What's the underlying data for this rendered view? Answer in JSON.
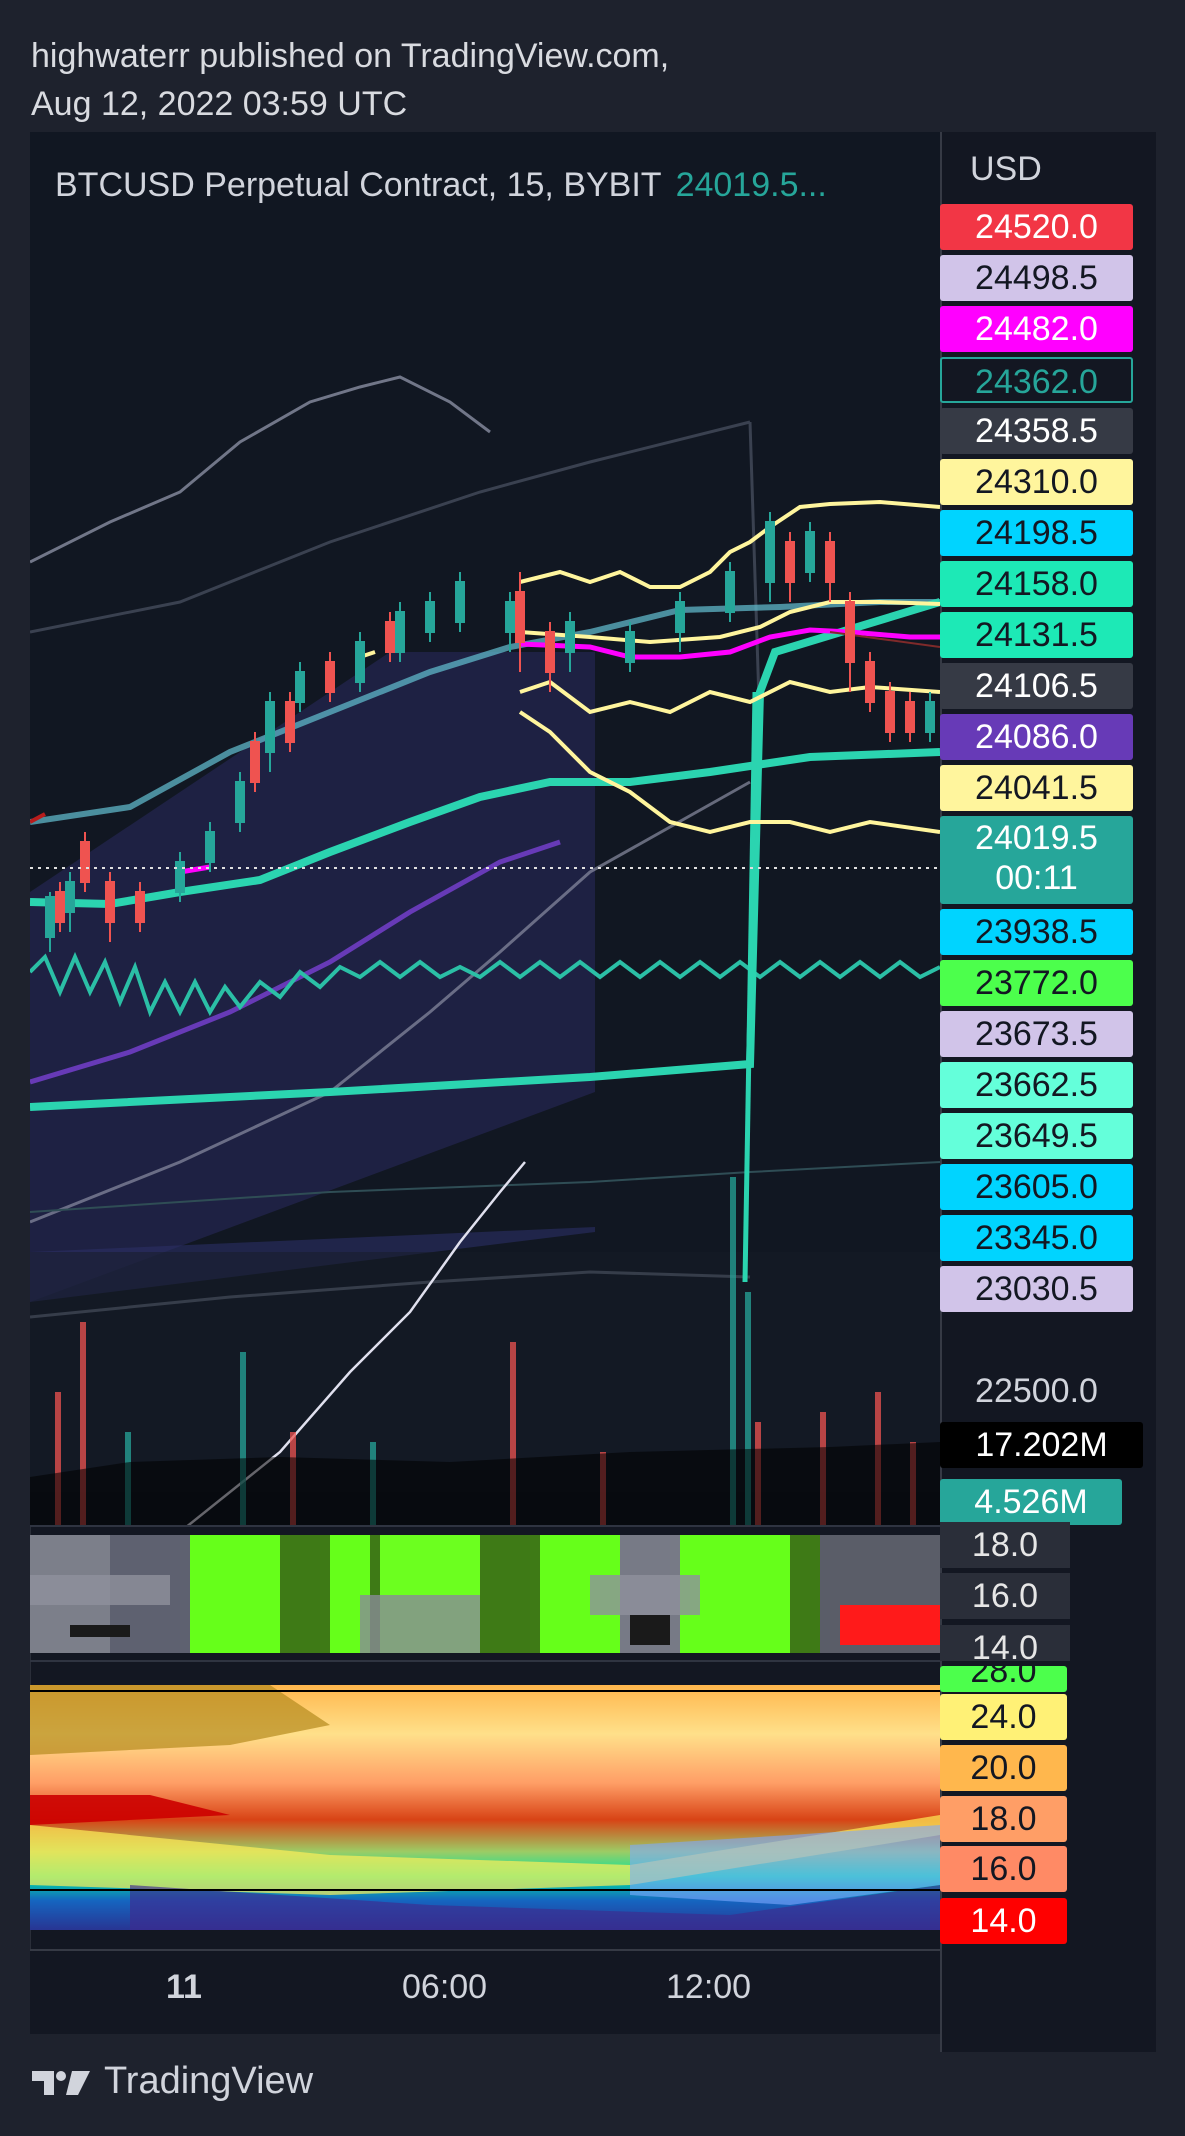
{
  "header": {
    "line1": "highwaterr published on TradingView.com,",
    "line2": "Aug 12, 2022 03:59 UTC"
  },
  "symbol": {
    "title": "BTCUSD Perpetual Contract, 15, BYBIT",
    "price": "24019.5..."
  },
  "price_axis": {
    "currency": "USD",
    "labels": [
      {
        "value": "24520.0",
        "bg": "#f23645",
        "fg": "#ffffff"
      },
      {
        "value": "24498.5",
        "bg": "#d1c4e9",
        "fg": "#131722"
      },
      {
        "value": "24482.0",
        "bg": "#ff00ff",
        "fg": "#ffffff"
      },
      {
        "value": "24362.0",
        "bg": "#131722",
        "fg": "#26a69a",
        "border": "#26a69a"
      },
      {
        "value": "24358.5",
        "bg": "#363a45",
        "fg": "#ffffff"
      },
      {
        "value": "24310.0",
        "bg": "#fff59d",
        "fg": "#131722"
      },
      {
        "value": "24198.5",
        "bg": "#00d4ff",
        "fg": "#131722"
      },
      {
        "value": "24158.0",
        "bg": "#1de9b6",
        "fg": "#131722"
      },
      {
        "value": "24131.5",
        "bg": "#1de9b6",
        "fg": "#131722"
      },
      {
        "value": "24106.5",
        "bg": "#363a45",
        "fg": "#ffffff"
      },
      {
        "value": "24086.0",
        "bg": "#673ab7",
        "fg": "#ffffff"
      },
      {
        "value": "24041.5",
        "bg": "#fff59d",
        "fg": "#131722"
      },
      {
        "value": "24019.5",
        "bg": "#26a69a",
        "fg": "#ffffff"
      },
      {
        "value": "23938.5",
        "bg": "#00d4ff",
        "fg": "#131722"
      },
      {
        "value": "23772.0",
        "bg": "#4cff4c",
        "fg": "#131722"
      },
      {
        "value": "23673.5",
        "bg": "#d1c4e9",
        "fg": "#131722"
      },
      {
        "value": "23662.5",
        "bg": "#64ffda",
        "fg": "#131722"
      },
      {
        "value": "23649.5",
        "bg": "#64ffda",
        "fg": "#131722"
      },
      {
        "value": "23605.0",
        "bg": "#00d4ff",
        "fg": "#131722"
      },
      {
        "value": "23345.0",
        "bg": "#00d4ff",
        "fg": "#131722"
      },
      {
        "value": "23030.5",
        "bg": "#d1c4e9",
        "fg": "#131722"
      }
    ],
    "countdown": "00:11",
    "level_22500": "22500.0",
    "volume_labels": [
      {
        "value": "17.202M",
        "bg": "#000000",
        "fg": "#ffffff"
      },
      {
        "value": "4.526M",
        "bg": "#26a69a",
        "fg": "#ffffff"
      }
    ],
    "pane2_labels": [
      "18.0",
      "16.0",
      "14.0"
    ],
    "pane3_labels": [
      {
        "value": "28.0",
        "bg": "#4cff4c",
        "fg": "#131722"
      },
      {
        "value": "24.0",
        "bg": "#fff176",
        "fg": "#131722"
      },
      {
        "value": "20.0",
        "bg": "#ffb74d",
        "fg": "#131722"
      },
      {
        "value": "18.0",
        "bg": "#ff9e66",
        "fg": "#131722"
      },
      {
        "value": "16.0",
        "bg": "#ff8a65",
        "fg": "#131722"
      },
      {
        "value": "14.0",
        "bg": "#ff0000",
        "fg": "#ffffff"
      }
    ]
  },
  "time_axis": [
    "11",
    "06:00",
    "12:00"
  ],
  "footer": {
    "brand": "TradingView"
  },
  "colors": {
    "up": "#26a69a",
    "down": "#ef5350",
    "yellow": "#fff59d",
    "magenta": "#ff00ff",
    "purple": "#673ab7",
    "teal_band": "#2bd4b0"
  }
}
